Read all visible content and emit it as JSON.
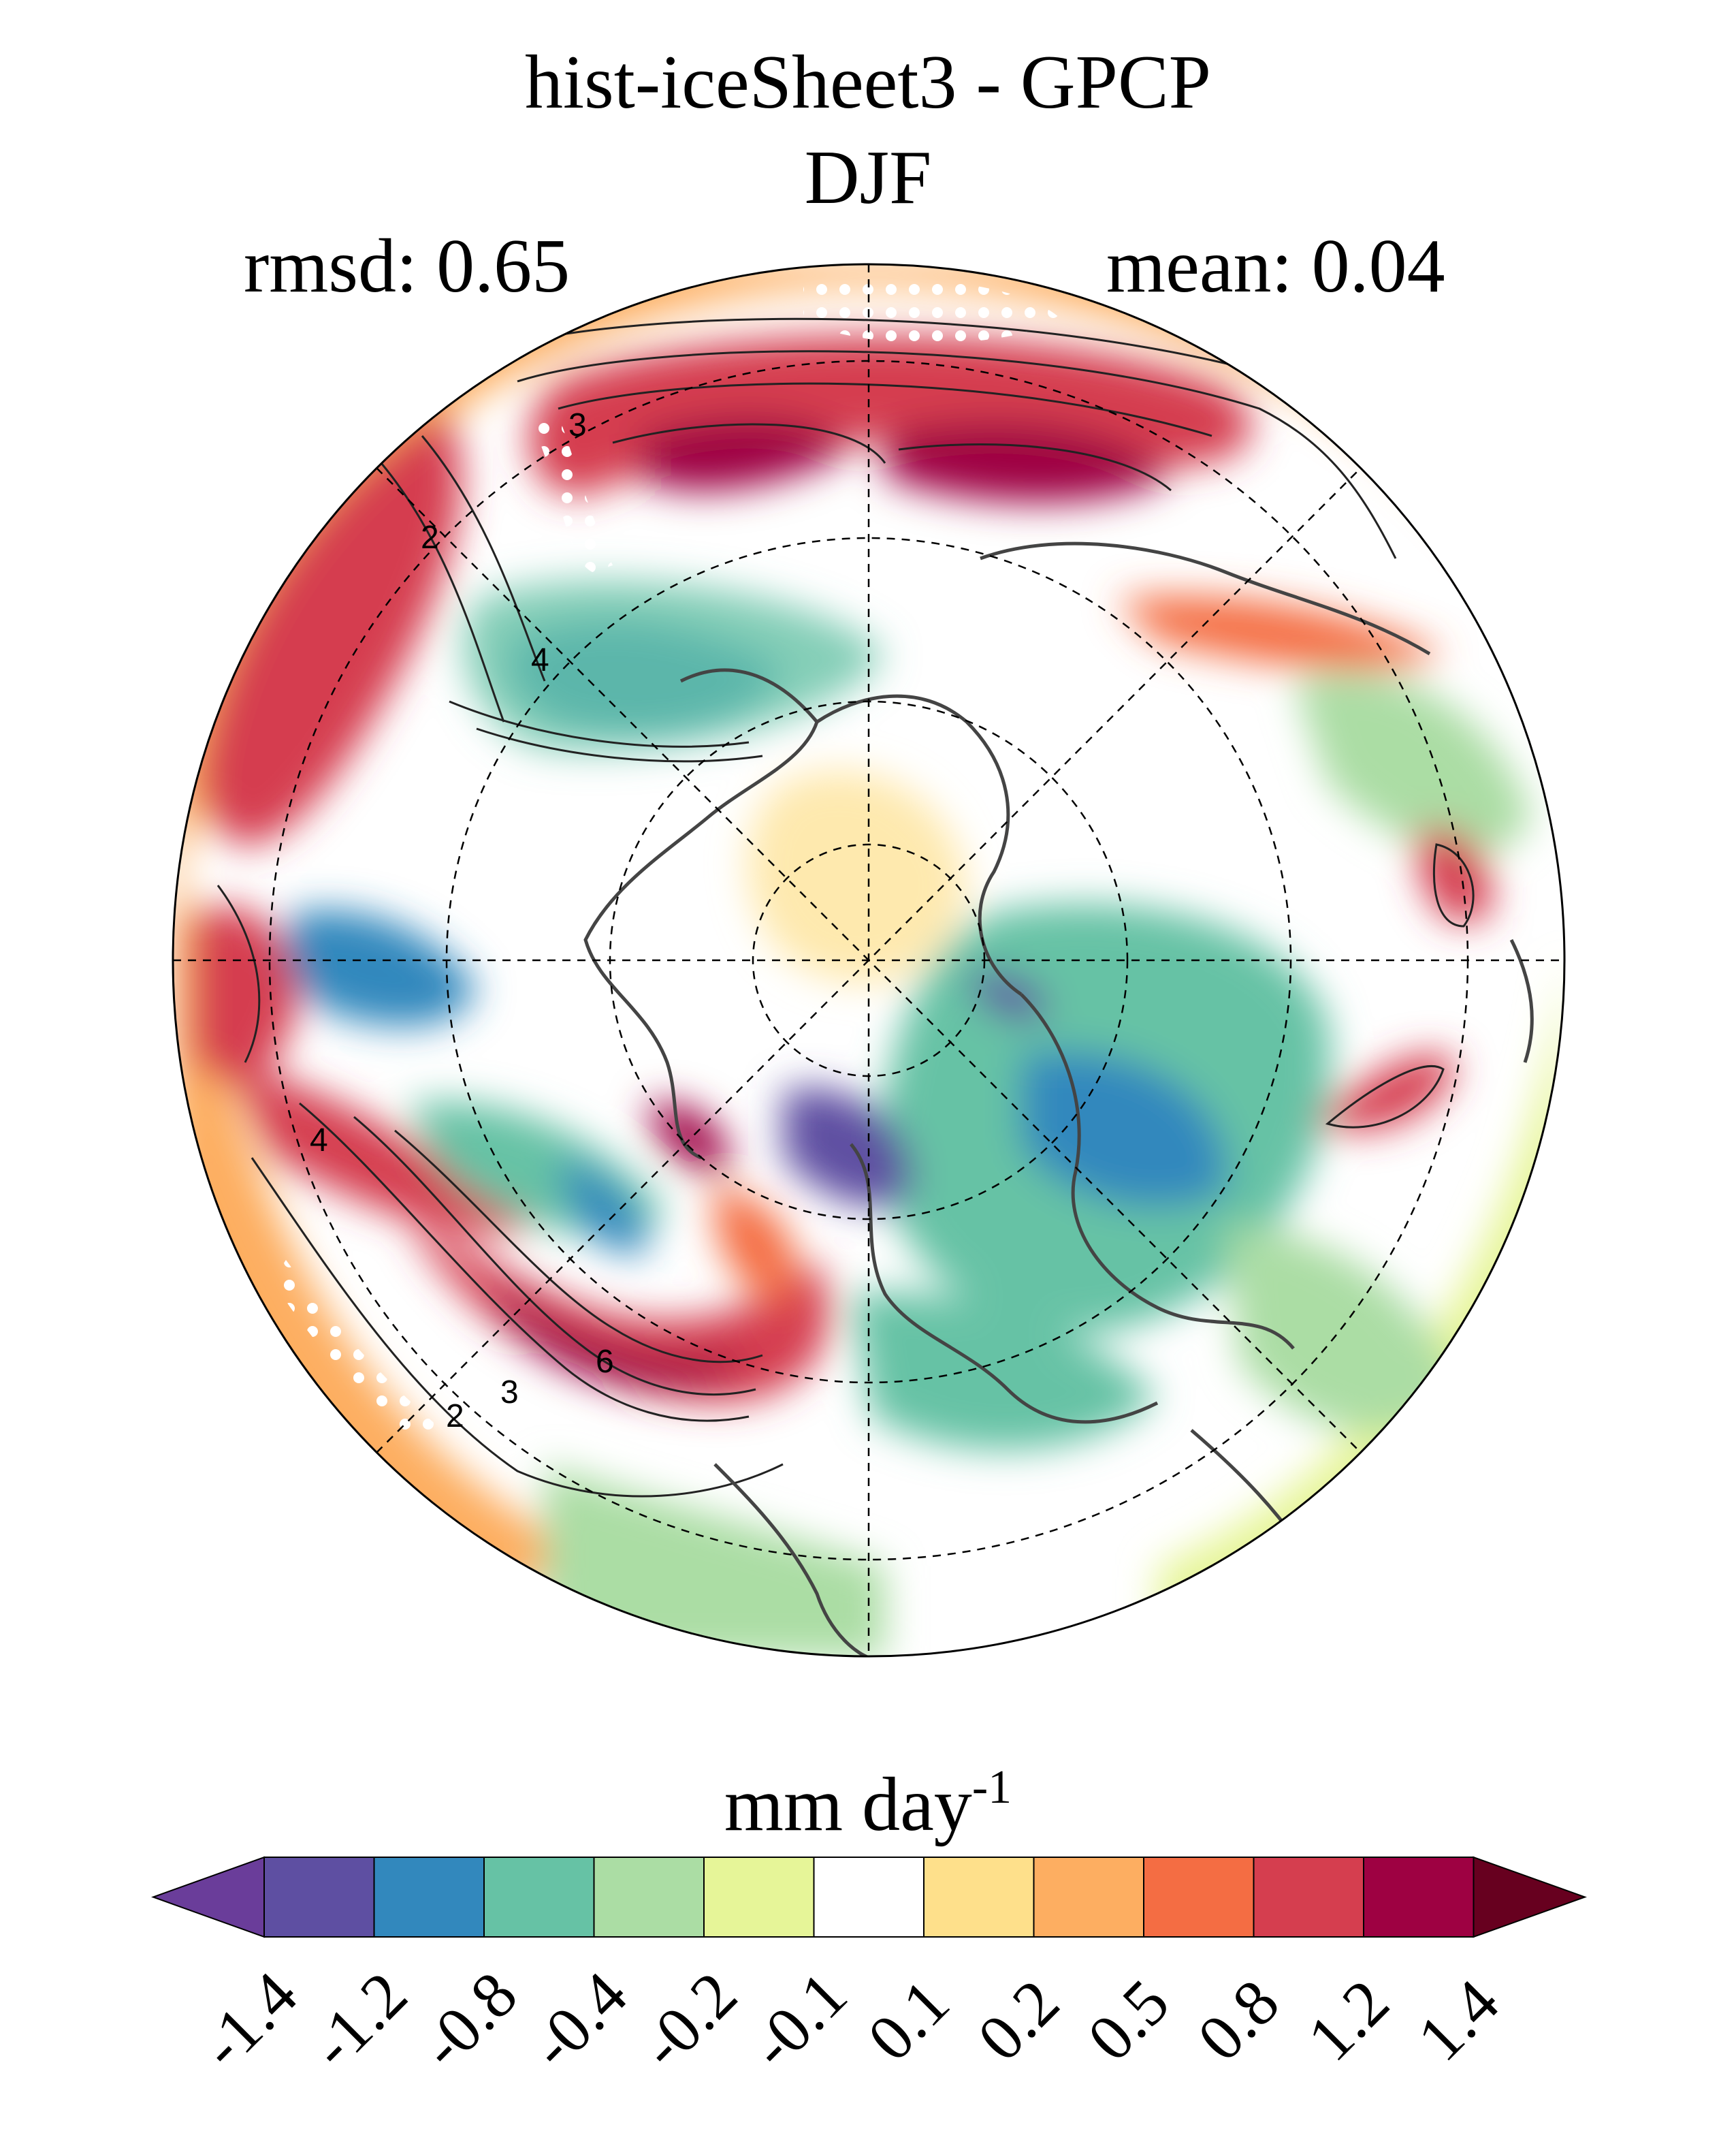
{
  "title": "hist-iceSheet3 - GPCP",
  "season": "DJF",
  "stats": {
    "rmsd": "rmsd: 0.65",
    "mean": "mean: 0.04"
  },
  "map": {
    "projection": "north-polar-stereographic",
    "variable": "precipitation difference",
    "contour_labels": [
      "2",
      "3",
      "4",
      "2",
      "3",
      "4",
      "6"
    ],
    "stippling": true,
    "gridlines": "dashed"
  },
  "colorbar": {
    "units_base": "mm day",
    "units_exp": "-1",
    "ticks": [
      "-1.4",
      "-1.2",
      "-0.8",
      "-0.4",
      "-0.2",
      "-0.1",
      "0.1",
      "0.2",
      "0.5",
      "0.8",
      "1.2",
      "1.4"
    ],
    "colors": [
      "#5e4fa2",
      "#3288bd",
      "#66c2a5",
      "#abdda4",
      "#e6f598",
      "#ffffff",
      "#fee08b",
      "#fdae61",
      "#f46d43",
      "#d53e4f",
      "#9e0142"
    ],
    "under_color": "#6a3d9a",
    "over_color": "#67001f"
  }
}
